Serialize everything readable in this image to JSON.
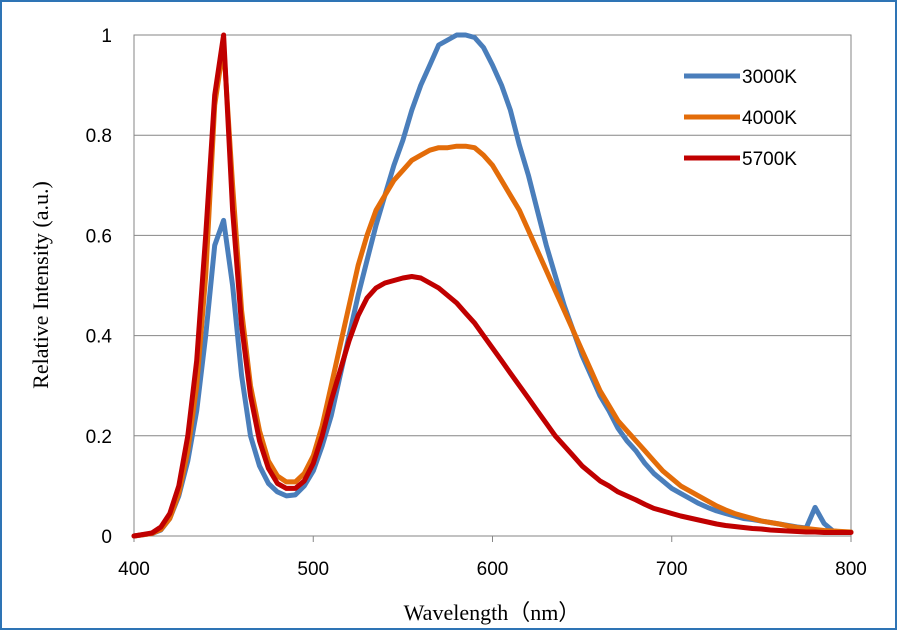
{
  "chart_data": {
    "type": "line",
    "title": "",
    "xlabel": "Wavelength（nm）",
    "ylabel": "Relative Intensity (a.u.)",
    "xlim": [
      400,
      800
    ],
    "ylim": [
      0,
      1
    ],
    "xticks": [
      400,
      500,
      600,
      700,
      800
    ],
    "yticks": [
      0,
      0.2,
      0.4,
      0.6,
      0.8,
      1
    ],
    "ytick_labels": [
      "0",
      "0.2",
      "0.4",
      "0.6",
      "0.8",
      "1"
    ],
    "grid": "horizontal",
    "legend_position": "top-right",
    "series": [
      {
        "name": "3000K",
        "color": "#4a7ebb",
        "x": [
          400,
          410,
          415,
          420,
          425,
          430,
          435,
          440,
          445,
          450,
          455,
          460,
          465,
          470,
          475,
          480,
          485,
          490,
          495,
          500,
          505,
          510,
          515,
          520,
          525,
          530,
          535,
          540,
          545,
          550,
          555,
          560,
          565,
          570,
          575,
          580,
          585,
          590,
          595,
          600,
          605,
          610,
          615,
          620,
          625,
          630,
          635,
          640,
          645,
          650,
          655,
          660,
          665,
          670,
          675,
          680,
          685,
          690,
          695,
          700,
          705,
          710,
          715,
          720,
          725,
          730,
          735,
          740,
          745,
          750,
          755,
          760,
          765,
          770,
          775,
          780,
          785,
          790,
          795,
          800
        ],
        "y": [
          0,
          0.005,
          0.012,
          0.035,
          0.08,
          0.15,
          0.25,
          0.4,
          0.58,
          0.63,
          0.5,
          0.32,
          0.2,
          0.14,
          0.105,
          0.088,
          0.08,
          0.082,
          0.1,
          0.13,
          0.18,
          0.24,
          0.32,
          0.4,
          0.48,
          0.55,
          0.62,
          0.68,
          0.74,
          0.79,
          0.85,
          0.9,
          0.94,
          0.98,
          0.99,
          1.0,
          1.0,
          0.995,
          0.975,
          0.94,
          0.9,
          0.85,
          0.78,
          0.72,
          0.65,
          0.58,
          0.52,
          0.46,
          0.41,
          0.36,
          0.32,
          0.28,
          0.25,
          0.215,
          0.19,
          0.17,
          0.145,
          0.125,
          0.11,
          0.095,
          0.085,
          0.075,
          0.065,
          0.057,
          0.05,
          0.045,
          0.04,
          0.035,
          0.033,
          0.03,
          0.027,
          0.024,
          0.021,
          0.018,
          0.016,
          0.057,
          0.025,
          0.01,
          0.008,
          0.008
        ]
      },
      {
        "name": "4000K",
        "color": "#e36c09",
        "x": [
          400,
          410,
          415,
          420,
          425,
          430,
          435,
          440,
          445,
          450,
          455,
          460,
          465,
          470,
          475,
          480,
          485,
          490,
          495,
          500,
          505,
          510,
          515,
          520,
          525,
          530,
          535,
          540,
          545,
          550,
          555,
          560,
          565,
          570,
          575,
          580,
          585,
          590,
          595,
          600,
          605,
          610,
          615,
          620,
          625,
          630,
          635,
          640,
          645,
          650,
          655,
          660,
          665,
          670,
          675,
          680,
          685,
          690,
          695,
          700,
          705,
          710,
          715,
          720,
          725,
          730,
          735,
          740,
          745,
          750,
          755,
          760,
          765,
          770,
          775,
          780,
          785,
          790,
          795,
          800
        ],
        "y": [
          0,
          0.005,
          0.013,
          0.035,
          0.085,
          0.17,
          0.3,
          0.52,
          0.86,
          0.98,
          0.7,
          0.45,
          0.3,
          0.21,
          0.15,
          0.12,
          0.108,
          0.108,
          0.125,
          0.16,
          0.22,
          0.3,
          0.38,
          0.46,
          0.54,
          0.6,
          0.65,
          0.68,
          0.71,
          0.73,
          0.75,
          0.76,
          0.77,
          0.775,
          0.775,
          0.778,
          0.778,
          0.775,
          0.76,
          0.74,
          0.71,
          0.68,
          0.65,
          0.61,
          0.57,
          0.53,
          0.49,
          0.45,
          0.41,
          0.37,
          0.33,
          0.29,
          0.26,
          0.23,
          0.21,
          0.19,
          0.17,
          0.15,
          0.13,
          0.115,
          0.1,
          0.09,
          0.08,
          0.07,
          0.06,
          0.052,
          0.045,
          0.04,
          0.035,
          0.03,
          0.027,
          0.024,
          0.02,
          0.017,
          0.015,
          0.013,
          0.011,
          0.01,
          0.009,
          0.008
        ]
      },
      {
        "name": "5700K",
        "color": "#c00000",
        "x": [
          400,
          410,
          415,
          420,
          425,
          430,
          435,
          440,
          445,
          450,
          455,
          460,
          465,
          470,
          475,
          480,
          485,
          490,
          495,
          500,
          505,
          510,
          515,
          520,
          525,
          530,
          535,
          540,
          545,
          550,
          555,
          560,
          565,
          570,
          575,
          580,
          585,
          590,
          595,
          600,
          605,
          610,
          615,
          620,
          625,
          630,
          635,
          640,
          645,
          650,
          655,
          660,
          665,
          670,
          675,
          680,
          685,
          690,
          695,
          700,
          705,
          710,
          715,
          720,
          725,
          730,
          735,
          740,
          745,
          750,
          755,
          760,
          765,
          770,
          775,
          780,
          785,
          790,
          795,
          800
        ],
        "y": [
          0,
          0.006,
          0.018,
          0.045,
          0.1,
          0.2,
          0.35,
          0.6,
          0.88,
          1.0,
          0.65,
          0.42,
          0.28,
          0.19,
          0.135,
          0.105,
          0.095,
          0.095,
          0.11,
          0.145,
          0.2,
          0.27,
          0.33,
          0.39,
          0.44,
          0.475,
          0.495,
          0.505,
          0.51,
          0.515,
          0.518,
          0.515,
          0.505,
          0.495,
          0.48,
          0.465,
          0.445,
          0.425,
          0.4,
          0.375,
          0.35,
          0.325,
          0.3,
          0.275,
          0.25,
          0.225,
          0.2,
          0.18,
          0.16,
          0.14,
          0.125,
          0.11,
          0.1,
          0.088,
          0.08,
          0.072,
          0.063,
          0.055,
          0.05,
          0.045,
          0.04,
          0.036,
          0.032,
          0.028,
          0.024,
          0.021,
          0.019,
          0.017,
          0.015,
          0.014,
          0.012,
          0.011,
          0.01,
          0.009,
          0.008,
          0.008,
          0.007,
          0.007,
          0.007,
          0.007
        ]
      }
    ]
  }
}
